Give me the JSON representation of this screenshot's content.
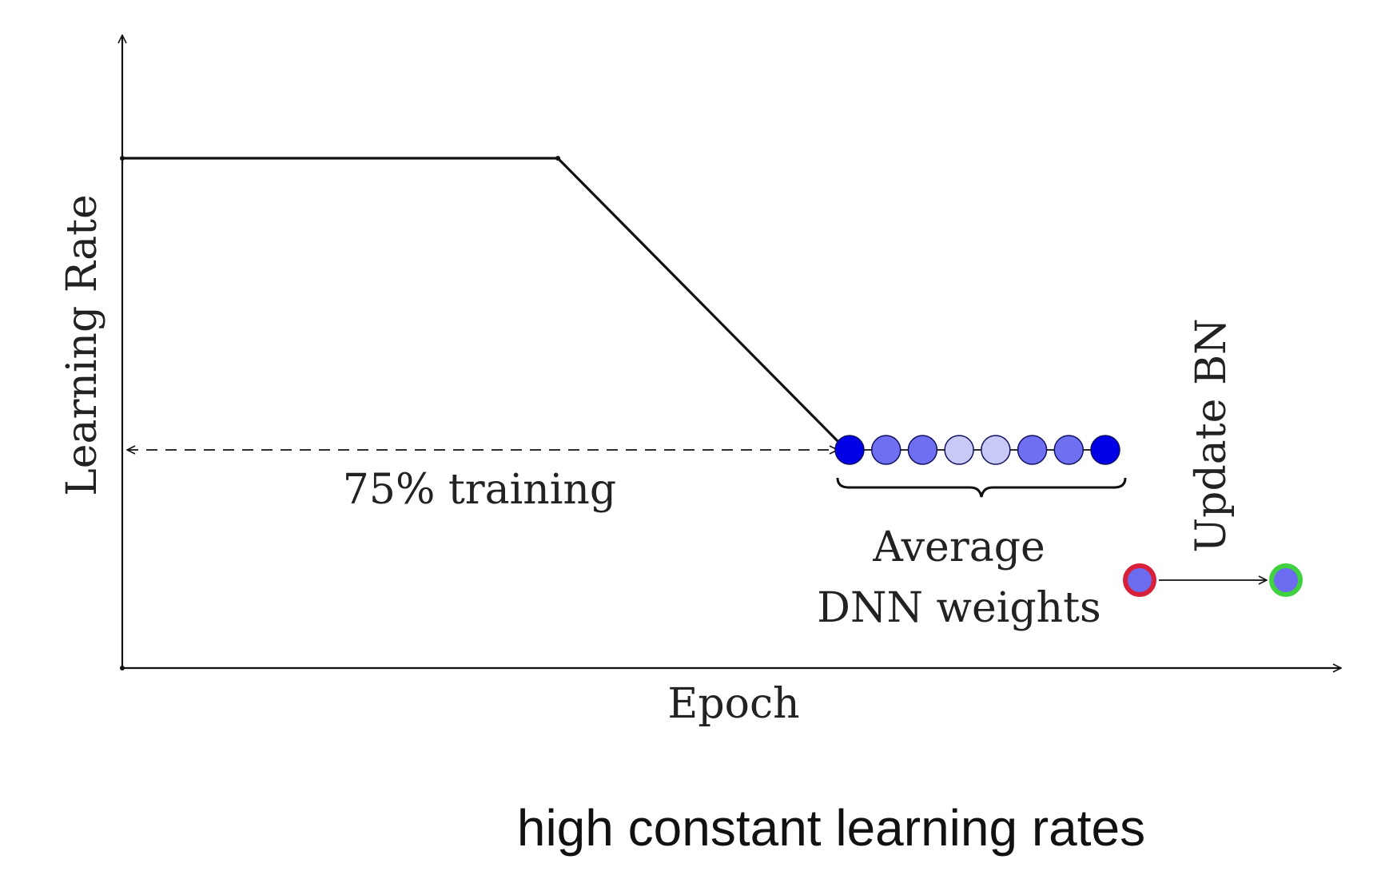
{
  "diagram": {
    "y_axis_label": "Learning Rate",
    "x_axis_label": "Epoch",
    "phase_annotation": "75% training",
    "average_label_line1": "Average",
    "average_label_line2": "DNN weights",
    "update_label": "Update BN",
    "caption": "high constant learning rates",
    "colors": {
      "line": "#111111",
      "weight_dot_dark": "#0000e6",
      "weight_dot_mid": "#6f6ff2",
      "weight_dot_light": "#c9c9f7",
      "model_fill": "#6c6cf0",
      "model_before_ring": "#d8203a",
      "model_after_ring": "#3fd13f"
    },
    "weight_snapshots": [
      "dark",
      "mid",
      "mid",
      "light",
      "light",
      "mid",
      "mid",
      "dark"
    ]
  }
}
